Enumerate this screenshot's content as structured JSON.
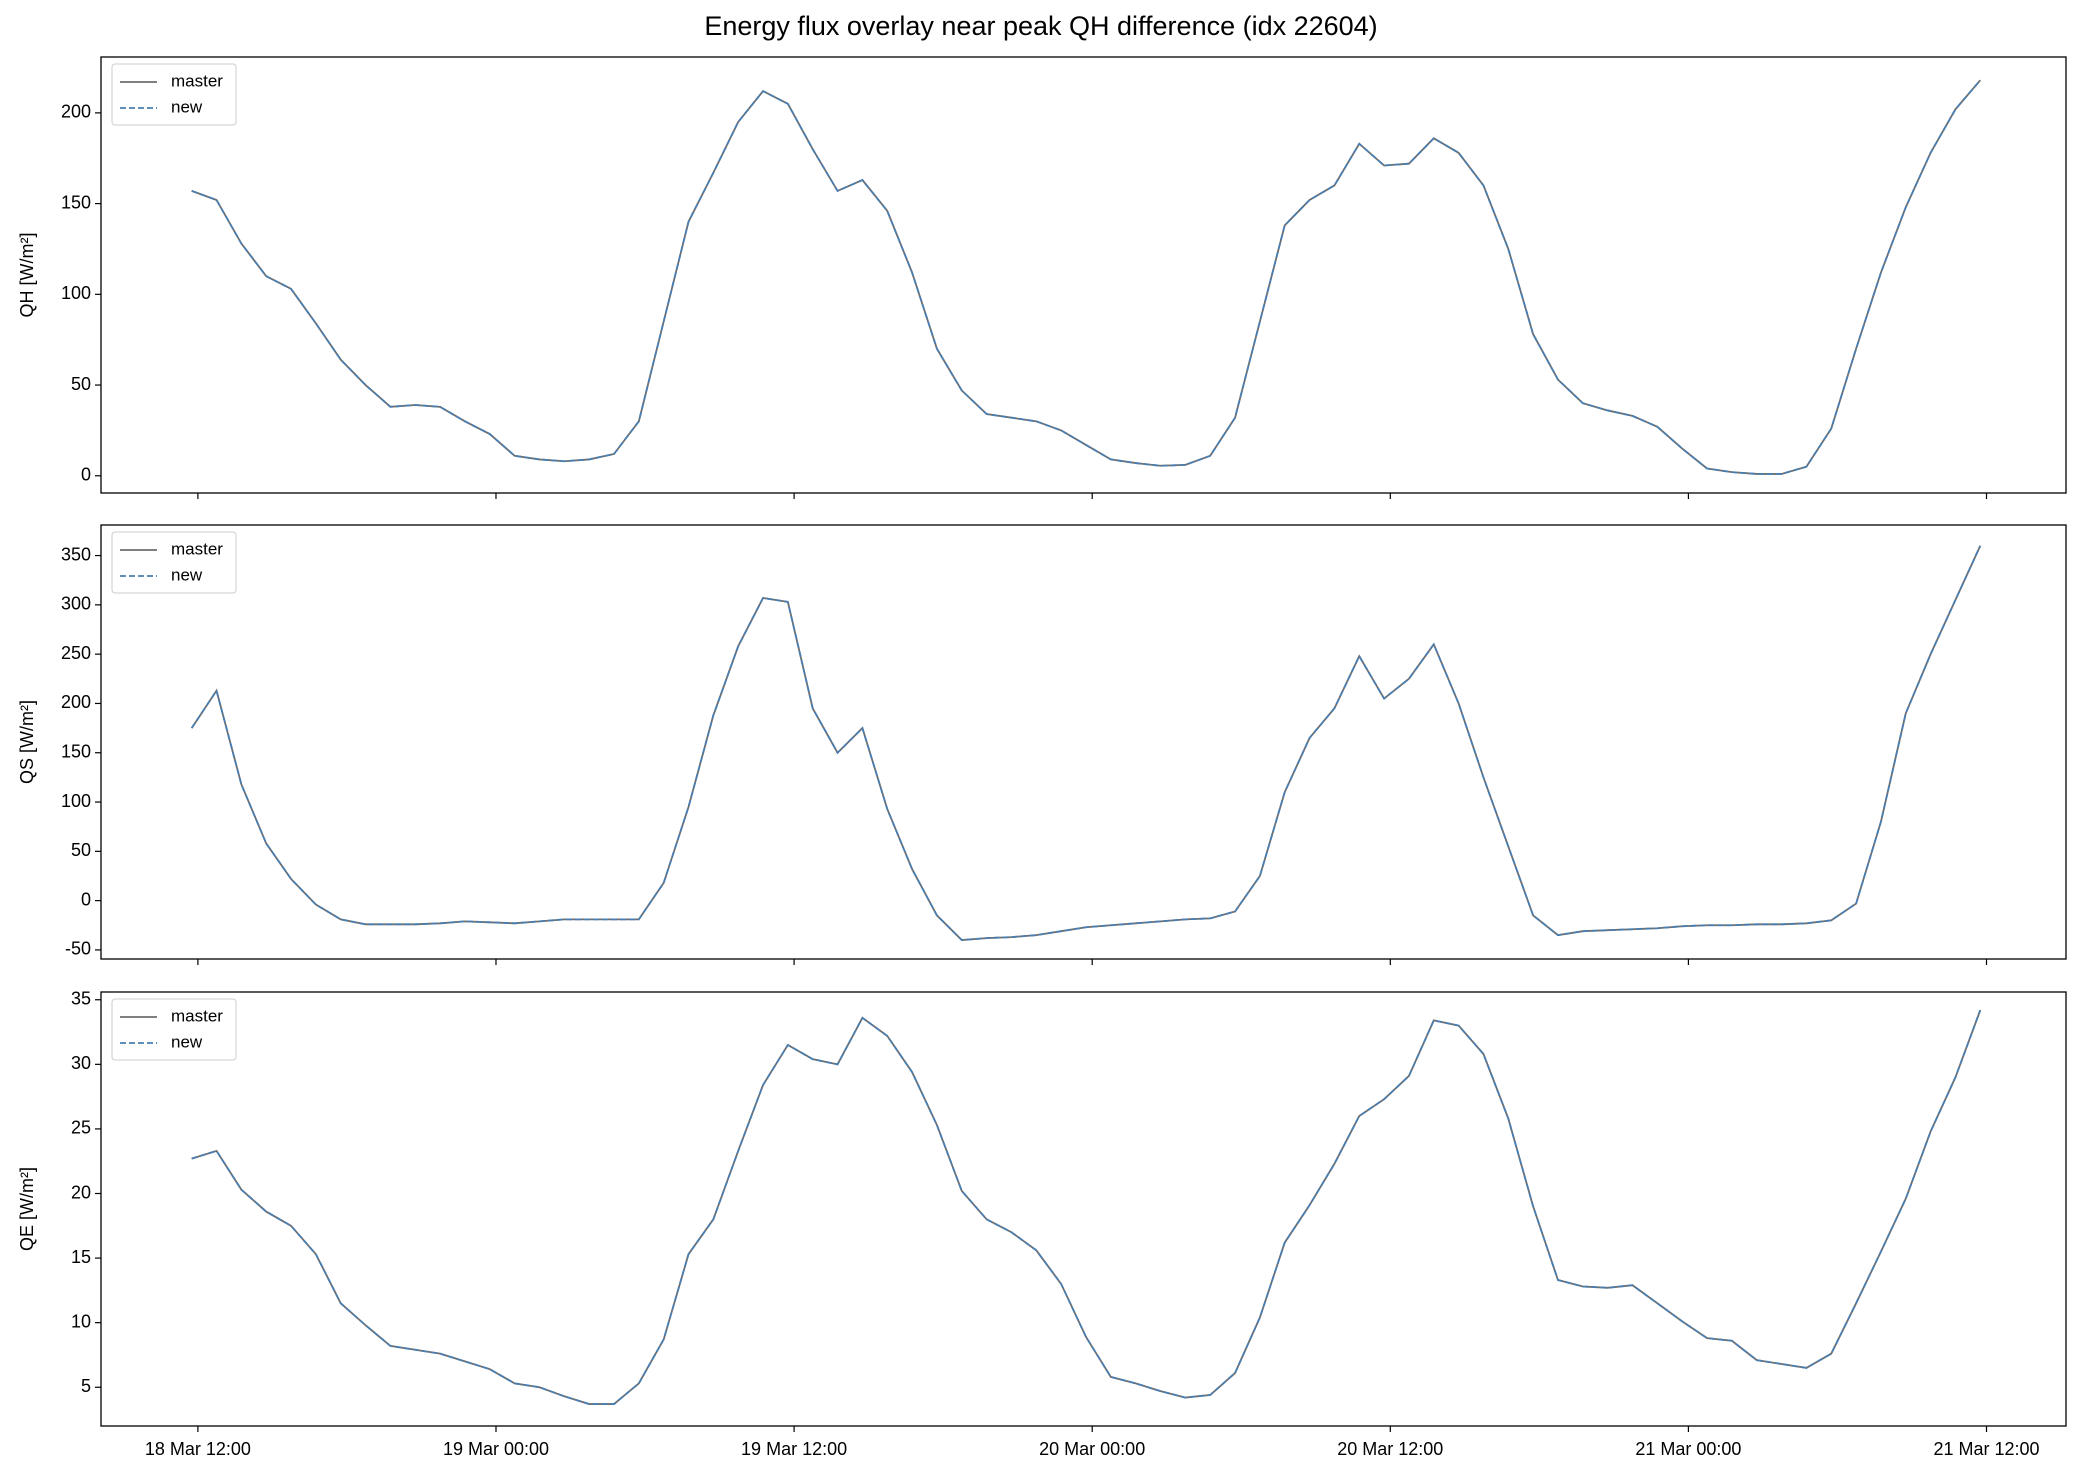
{
  "chart_data": {
    "type": "line",
    "title": "Energy flux overlay near peak QH difference (idx 22604)",
    "x": [
      "18 Mar 11:45",
      "18 Mar 12:45",
      "18 Mar 13:45",
      "18 Mar 14:45",
      "18 Mar 15:45",
      "18 Mar 16:45",
      "18 Mar 17:45",
      "18 Mar 18:45",
      "18 Mar 19:45",
      "18 Mar 20:45",
      "18 Mar 21:45",
      "18 Mar 22:45",
      "18 Mar 23:45",
      "19 Mar 00:45",
      "19 Mar 01:45",
      "19 Mar 02:45",
      "19 Mar 03:45",
      "19 Mar 04:45",
      "19 Mar 05:45",
      "19 Mar 06:45",
      "19 Mar 07:45",
      "19 Mar 08:45",
      "19 Mar 09:45",
      "19 Mar 10:45",
      "19 Mar 11:45",
      "19 Mar 12:45",
      "19 Mar 13:45",
      "19 Mar 14:45",
      "19 Mar 15:45",
      "19 Mar 16:45",
      "19 Mar 17:45",
      "19 Mar 18:45",
      "19 Mar 19:45",
      "19 Mar 20:45",
      "19 Mar 21:45",
      "19 Mar 22:45",
      "19 Mar 23:45",
      "20 Mar 00:45",
      "20 Mar 01:45",
      "20 Mar 02:45",
      "20 Mar 03:45",
      "20 Mar 04:45",
      "20 Mar 05:45",
      "20 Mar 06:45",
      "20 Mar 07:45",
      "20 Mar 08:45",
      "20 Mar 09:45",
      "20 Mar 10:45",
      "20 Mar 11:45",
      "20 Mar 12:45",
      "20 Mar 13:45",
      "20 Mar 14:45",
      "20 Mar 15:45",
      "20 Mar 16:45",
      "20 Mar 17:45",
      "20 Mar 18:45",
      "20 Mar 19:45",
      "20 Mar 20:45",
      "20 Mar 21:45",
      "20 Mar 22:45",
      "20 Mar 23:45",
      "21 Mar 00:45",
      "21 Mar 01:45",
      "21 Mar 02:45",
      "21 Mar 03:45",
      "21 Mar 04:45",
      "21 Mar 05:45",
      "21 Mar 06:45",
      "21 Mar 07:45",
      "21 Mar 08:45",
      "21 Mar 09:45",
      "21 Mar 10:45",
      "21 Mar 11:45"
    ],
    "xlim": [
      "18 Mar 08:06",
      "21 Mar 15:12"
    ],
    "xticks": [
      "18 Mar 12:00",
      "19 Mar 00:00",
      "19 Mar 12:00",
      "20 Mar 00:00",
      "20 Mar 12:00",
      "21 Mar 00:00",
      "21 Mar 12:00"
    ],
    "legend": "upper left",
    "panels": [
      {
        "ylabel": "QH [W/m²]",
        "ylim": [
          -9.5,
          230.8
        ],
        "yticks": [
          0,
          50,
          100,
          150,
          200
        ],
        "series": [
          {
            "name": "master",
            "color": "#6e6e6e",
            "style": "solid",
            "values": [
              157,
              152,
              128,
              110,
              103,
              84,
              64,
              50,
              38,
              39,
              38,
              30,
              23,
              11,
              9,
              8,
              9,
              12,
              30,
              85,
              140,
              167,
              195,
              212,
              205,
              180,
              157,
              163,
              146,
              112,
              70,
              47,
              34,
              32,
              30,
              25,
              17,
              9,
              7,
              5.5,
              6,
              11,
              32,
              85,
              138,
              152,
              160,
              183,
              171,
              172,
              186,
              178,
              160,
              125,
              78,
              53,
              40,
              36,
              33,
              27,
              15,
              4,
              2,
              1,
              1,
              5,
              26,
              70,
              112,
              148,
              178,
              202,
              218
            ]
          },
          {
            "name": "new",
            "color": "#4a7eb0",
            "style": "dashed",
            "values": [
              157,
              152,
              128,
              110,
              103,
              84,
              64,
              50,
              38,
              39,
              38,
              30,
              23,
              11,
              9,
              8,
              9,
              12,
              30,
              85,
              140,
              167,
              195,
              212,
              205,
              180,
              157,
              163,
              146,
              112,
              70,
              47,
              34,
              32,
              30,
              25,
              17,
              9,
              7,
              5.5,
              6,
              11,
              32,
              85,
              138,
              152,
              160,
              183,
              171,
              172,
              186,
              178,
              160,
              125,
              78,
              53,
              40,
              36,
              33,
              27,
              15,
              4,
              2,
              1,
              1,
              5,
              26,
              70,
              112,
              148,
              178,
              202,
              218
            ]
          }
        ]
      },
      {
        "ylabel": "QS [W/m²]",
        "ylim": [
          -59.2,
          381
        ],
        "yticks": [
          -50,
          0,
          50,
          100,
          150,
          200,
          250,
          300,
          350
        ],
        "series": [
          {
            "name": "master",
            "color": "#6e6e6e",
            "style": "solid",
            "values": [
              175,
              213,
              118,
              58,
              22,
              -4,
              -19,
              -24,
              -24,
              -24,
              -23,
              -21,
              -22,
              -23,
              -21,
              -19,
              -19,
              -19,
              -19,
              18,
              95,
              188,
              258,
              307,
              303,
              195,
              150,
              175,
              93,
              32,
              -15,
              -40,
              -38,
              -37,
              -35,
              -31,
              -27,
              -25,
              -23,
              -21,
              -19,
              -18,
              -11,
              25,
              110,
              165,
              195,
              248,
              205,
              225,
              260,
              200,
              125,
              55,
              -15,
              -35,
              -31,
              -30,
              -29,
              -28,
              -26,
              -25,
              -25,
              -24,
              -24,
              -23,
              -20,
              -3,
              80,
              190,
              250,
              305,
              360
            ]
          },
          {
            "name": "new",
            "color": "#4a7eb0",
            "style": "dashed",
            "values": [
              175,
              213,
              118,
              58,
              22,
              -4,
              -19,
              -24,
              -24,
              -24,
              -23,
              -21,
              -22,
              -23,
              -21,
              -19,
              -19,
              -19,
              -19,
              18,
              95,
              188,
              258,
              307,
              303,
              195,
              150,
              175,
              93,
              32,
              -15,
              -40,
              -38,
              -37,
              -35,
              -31,
              -27,
              -25,
              -23,
              -21,
              -19,
              -18,
              -11,
              25,
              110,
              165,
              195,
              248,
              205,
              225,
              260,
              200,
              125,
              55,
              -15,
              -35,
              -31,
              -30,
              -29,
              -28,
              -26,
              -25,
              -25,
              -24,
              -24,
              -23,
              -20,
              -3,
              80,
              190,
              250,
              305,
              360
            ]
          }
        ]
      },
      {
        "ylabel": "QE [W/m²]",
        "ylim": [
          2.0,
          35.6
        ],
        "yticks": [
          5,
          10,
          15,
          20,
          25,
          30,
          35
        ],
        "series": [
          {
            "name": "master",
            "color": "#6e6e6e",
            "style": "solid",
            "values": [
              22.7,
              23.3,
              20.3,
              18.6,
              17.5,
              15.3,
              11.5,
              9.8,
              8.2,
              7.9,
              7.6,
              7.0,
              6.4,
              5.3,
              5.0,
              4.3,
              3.7,
              3.7,
              5.3,
              8.7,
              15.3,
              18.0,
              23.3,
              28.4,
              31.5,
              30.4,
              30.0,
              33.6,
              32.2,
              29.4,
              25.3,
              20.2,
              18.0,
              17.0,
              15.6,
              13.0,
              8.9,
              5.8,
              5.3,
              4.7,
              4.2,
              4.4,
              6.1,
              10.4,
              16.2,
              19.1,
              22.3,
              26.0,
              27.3,
              29.1,
              33.4,
              33.0,
              30.8,
              25.8,
              19.0,
              13.3,
              12.8,
              12.7,
              12.9,
              11.5,
              10.1,
              8.8,
              8.6,
              7.1,
              6.8,
              6.5,
              7.6,
              11.5,
              15.5,
              19.6,
              24.8,
              29.0,
              34.2
            ]
          },
          {
            "name": "new",
            "color": "#4a7eb0",
            "style": "dashed",
            "values": [
              22.7,
              23.3,
              20.3,
              18.6,
              17.5,
              15.3,
              11.5,
              9.8,
              8.2,
              7.9,
              7.6,
              7.0,
              6.4,
              5.3,
              5.0,
              4.3,
              3.7,
              3.7,
              5.3,
              8.7,
              15.3,
              18.0,
              23.3,
              28.4,
              31.5,
              30.4,
              30.0,
              33.6,
              32.2,
              29.4,
              25.3,
              20.2,
              18.0,
              17.0,
              15.6,
              13.0,
              8.9,
              5.8,
              5.3,
              4.7,
              4.2,
              4.4,
              6.1,
              10.4,
              16.2,
              19.1,
              22.3,
              26.0,
              27.3,
              29.1,
              33.4,
              33.0,
              30.8,
              25.8,
              19.0,
              13.3,
              12.8,
              12.7,
              12.9,
              11.5,
              10.1,
              8.8,
              8.6,
              7.1,
              6.8,
              6.5,
              7.6,
              11.5,
              15.5,
              19.6,
              24.8,
              29.0,
              34.2
            ]
          }
        ]
      }
    ]
  }
}
